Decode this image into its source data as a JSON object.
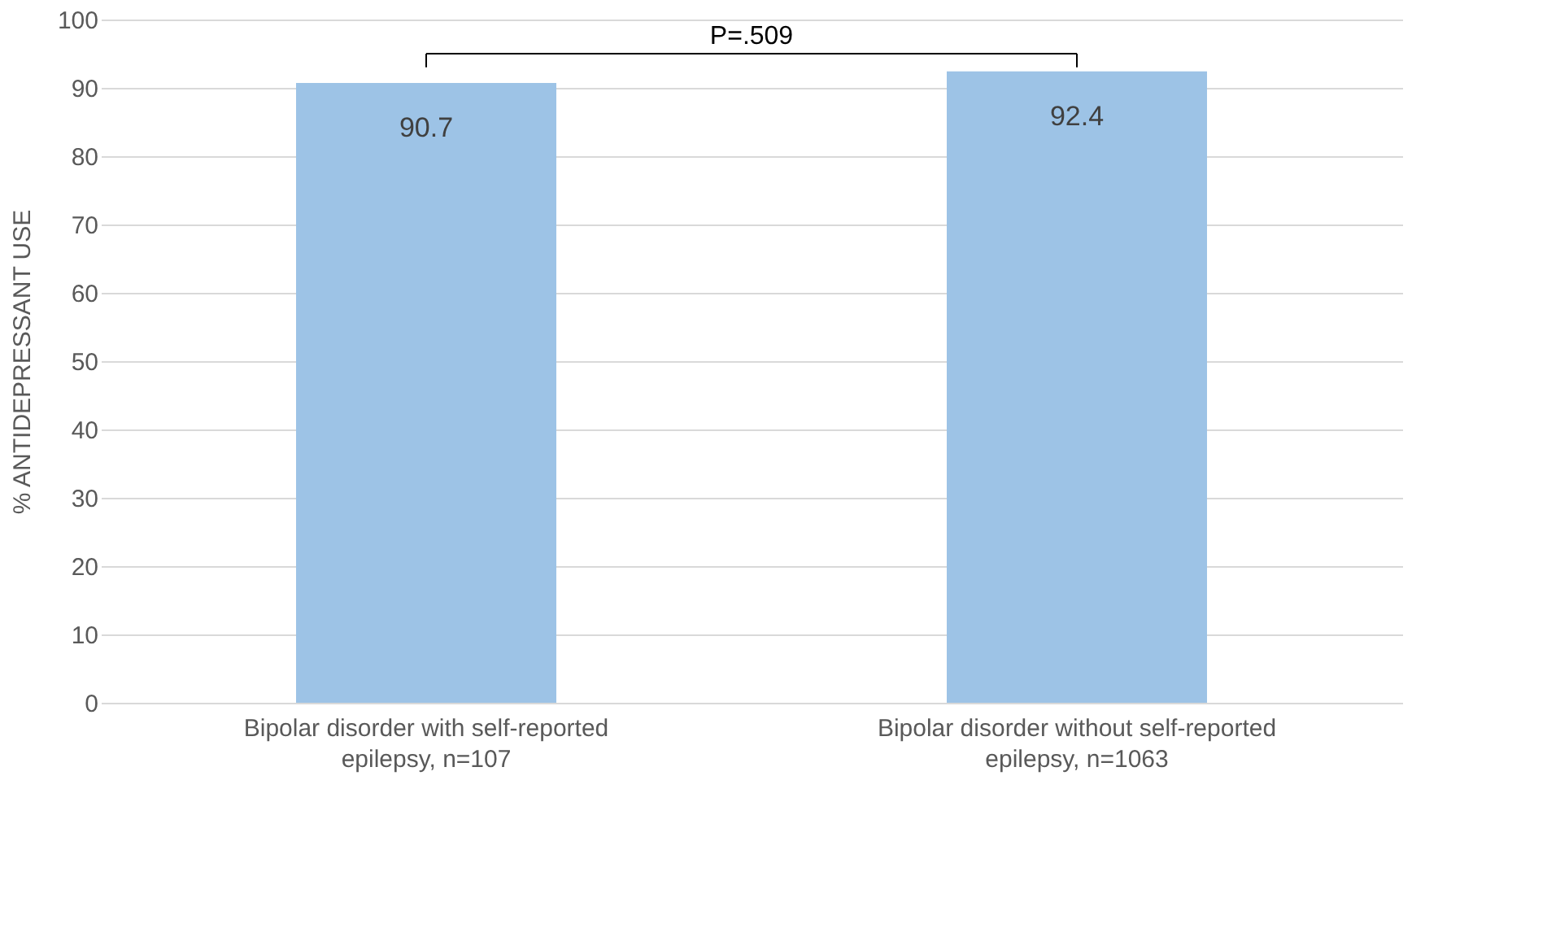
{
  "chart_data": {
    "type": "bar",
    "categories": [
      "Bipolar disorder with self-reported epilepsy, n=107",
      "Bipolar disorder without self-reported epilepsy, n=1063"
    ],
    "values": [
      90.7,
      92.4
    ],
    "color": "#9dc3e6",
    "ylabel": "% ANTIDEPRESSANT USE",
    "ylim": [
      0,
      100
    ],
    "yticks": [
      0,
      10,
      20,
      30,
      40,
      50,
      60,
      70,
      80,
      90,
      100
    ],
    "grid": "y",
    "data_labels": true,
    "annotations": [
      "P=.509"
    ]
  }
}
